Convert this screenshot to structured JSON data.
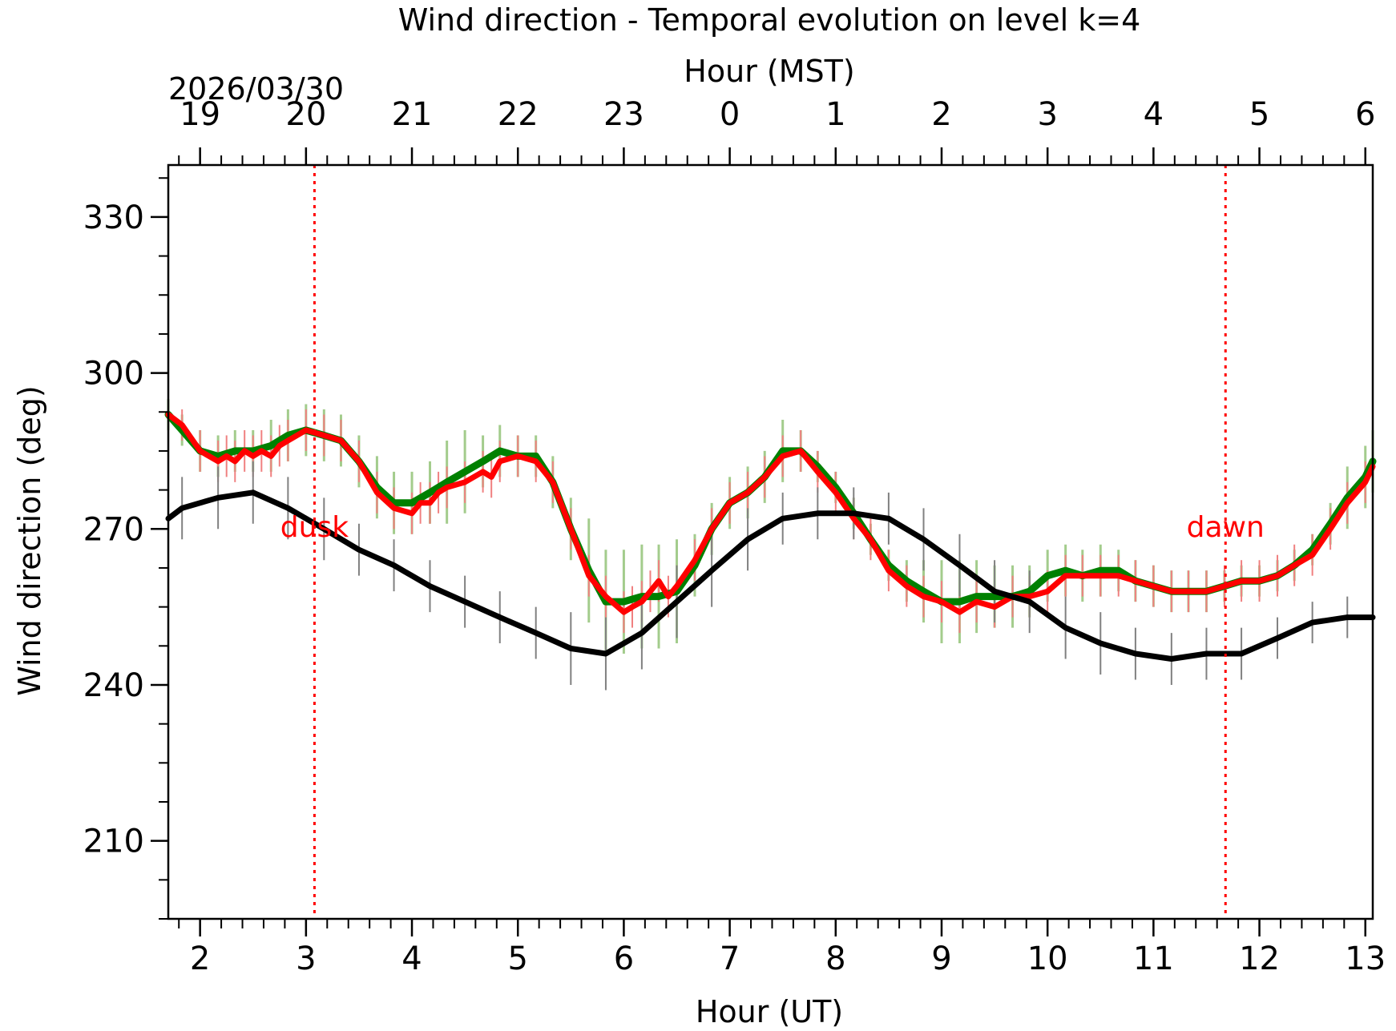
{
  "chart_data": {
    "type": "line",
    "title": "Wind direction - Temporal evolution on level k=4",
    "xlabel": "Hour (UT)",
    "x2label": "Hour (MST)",
    "ylabel": "Wind direction (deg)",
    "date_label": "2026/03/30",
    "xlim": [
      1.7,
      13.07
    ],
    "ylim": [
      195,
      340
    ],
    "x_ticks": [
      2,
      3,
      4,
      5,
      6,
      7,
      8,
      9,
      10,
      11,
      12,
      13
    ],
    "x_tick_labels": [
      "2",
      "3",
      "4",
      "5",
      "6",
      "7",
      "8",
      "9",
      "10",
      "11",
      "12",
      "13"
    ],
    "x2_ticks": [
      2,
      3,
      4,
      5,
      6,
      7,
      8,
      9,
      10,
      11,
      12,
      13
    ],
    "x2_tick_labels": [
      "19",
      "20",
      "21",
      "22",
      "23",
      "0",
      "1",
      "2",
      "3",
      "4",
      "5",
      "6"
    ],
    "y_ticks": [
      210,
      240,
      270,
      300,
      330
    ],
    "y_tick_labels": [
      "210",
      "240",
      "270",
      "300",
      "330"
    ],
    "annotations": [
      {
        "text": "dusk",
        "x": 3.08,
        "color": "#ff0000"
      },
      {
        "text": "dawn",
        "x": 11.68,
        "color": "#ff0000"
      }
    ],
    "grid": false,
    "legend": "none",
    "series": [
      {
        "color": "#008000",
        "error_color": "#a3cc8c",
        "x": [
          1.7,
          1.83,
          2.0,
          2.17,
          2.33,
          2.5,
          2.67,
          2.83,
          3.0,
          3.17,
          3.33,
          3.5,
          3.67,
          3.83,
          4.0,
          4.17,
          4.33,
          4.5,
          4.67,
          4.83,
          5.0,
          5.17,
          5.33,
          5.5,
          5.67,
          5.83,
          6.0,
          6.17,
          6.33,
          6.5,
          6.67,
          6.83,
          7.0,
          7.17,
          7.33,
          7.5,
          7.67,
          7.83,
          8.0,
          8.17,
          8.33,
          8.5,
          8.67,
          8.83,
          9.0,
          9.17,
          9.33,
          9.5,
          9.67,
          9.83,
          10.0,
          10.17,
          10.33,
          10.5,
          10.67,
          10.83,
          11.0,
          11.17,
          11.33,
          11.5,
          11.67,
          11.83,
          12.0,
          12.17,
          12.33,
          12.5,
          12.67,
          12.83,
          13.0,
          13.07
        ],
        "y": [
          292,
          289,
          285,
          284,
          285,
          285,
          286,
          288,
          289,
          288,
          287,
          283,
          278,
          275,
          275,
          277,
          279,
          281,
          283,
          285,
          284,
          284,
          279,
          270,
          262,
          256,
          256,
          257,
          257,
          258,
          263,
          270,
          275,
          277,
          280,
          285,
          285,
          282,
          278,
          273,
          268,
          263,
          260,
          258,
          256,
          256,
          257,
          257,
          257,
          258,
          261,
          262,
          261,
          262,
          262,
          260,
          259,
          258,
          258,
          258,
          259,
          260,
          260,
          261,
          263,
          266,
          271,
          276,
          280,
          283
        ],
        "err": [
          3,
          3,
          4,
          4,
          4,
          4,
          5,
          5,
          5,
          5,
          5,
          5,
          6,
          6,
          6,
          6,
          8,
          8,
          5,
          5,
          4,
          4,
          5,
          6,
          10,
          10,
          10,
          10,
          10,
          10,
          6,
          5,
          5,
          5,
          5,
          6,
          4,
          3,
          3,
          3,
          3,
          3,
          4,
          6,
          8,
          8,
          7,
          6,
          6,
          5,
          5,
          5,
          5,
          5,
          4,
          4,
          4,
          4,
          4,
          4,
          3,
          3,
          3,
          3,
          3,
          3,
          4,
          6,
          6,
          6
        ]
      },
      {
        "color": "#ff0000",
        "error_color": "#f08080",
        "x": [
          1.7,
          1.83,
          2.0,
          2.17,
          2.25,
          2.33,
          2.42,
          2.5,
          2.58,
          2.67,
          2.75,
          2.83,
          3.0,
          3.17,
          3.33,
          3.5,
          3.67,
          3.83,
          4.0,
          4.08,
          4.17,
          4.25,
          4.33,
          4.5,
          4.67,
          4.75,
          4.83,
          5.0,
          5.17,
          5.33,
          5.5,
          5.67,
          5.83,
          6.0,
          6.08,
          6.17,
          6.25,
          6.33,
          6.42,
          6.5,
          6.67,
          6.83,
          7.0,
          7.17,
          7.33,
          7.5,
          7.67,
          7.83,
          8.0,
          8.17,
          8.33,
          8.5,
          8.67,
          8.83,
          9.0,
          9.17,
          9.33,
          9.5,
          9.67,
          9.83,
          10.0,
          10.17,
          10.33,
          10.5,
          10.67,
          10.83,
          11.0,
          11.17,
          11.33,
          11.5,
          11.67,
          11.83,
          12.0,
          12.17,
          12.33,
          12.5,
          12.67,
          12.83,
          13.0,
          13.07
        ],
        "y": [
          292,
          290,
          285,
          283,
          284,
          283,
          285,
          284,
          285,
          284,
          286,
          287,
          289,
          288,
          287,
          283,
          277,
          274,
          273,
          275,
          275,
          277,
          278,
          279,
          281,
          280,
          283,
          284,
          283,
          279,
          270,
          261,
          257,
          254,
          255,
          256,
          258,
          260,
          257,
          259,
          264,
          270,
          275,
          277,
          280,
          284,
          285,
          281,
          277,
          272,
          268,
          262,
          259,
          257,
          256,
          254,
          256,
          255,
          257,
          257,
          258,
          261,
          261,
          261,
          261,
          260,
          259,
          258,
          258,
          258,
          259,
          260,
          260,
          261,
          263,
          265,
          270,
          275,
          279,
          282
        ],
        "err": [
          3,
          3,
          4,
          4,
          4,
          4,
          4,
          4,
          4,
          4,
          4,
          4,
          4,
          4,
          4,
          4,
          4,
          4,
          4,
          4,
          4,
          4,
          4,
          4,
          4,
          4,
          4,
          4,
          4,
          4,
          4,
          4,
          4,
          4,
          4,
          4,
          4,
          4,
          4,
          4,
          4,
          4,
          4,
          4,
          4,
          4,
          4,
          4,
          4,
          4,
          4,
          4,
          4,
          4,
          4,
          4,
          4,
          4,
          4,
          4,
          4,
          4,
          4,
          4,
          4,
          4,
          4,
          4,
          4,
          4,
          4,
          4,
          4,
          4,
          4,
          4,
          4,
          4,
          4,
          4
        ]
      },
      {
        "color": "#000000",
        "error_color": "#808080",
        "x": [
          1.7,
          1.83,
          2.17,
          2.5,
          2.83,
          3.17,
          3.5,
          3.83,
          4.17,
          4.5,
          4.83,
          5.17,
          5.5,
          5.83,
          6.17,
          6.5,
          6.83,
          7.17,
          7.5,
          7.83,
          8.17,
          8.5,
          8.83,
          9.17,
          9.5,
          9.83,
          10.17,
          10.5,
          10.83,
          11.17,
          11.5,
          11.83,
          12.17,
          12.5,
          12.83,
          13.07
        ],
        "y": [
          272,
          274,
          276,
          277,
          274,
          270,
          266,
          263,
          259,
          256,
          253,
          250,
          247,
          246,
          250,
          256,
          262,
          268,
          272,
          273,
          273,
          272,
          268,
          263,
          258,
          256,
          251,
          248,
          246,
          245,
          246,
          246,
          249,
          252,
          253,
          253
        ],
        "err": [
          6,
          6,
          6,
          6,
          6,
          6,
          5,
          5,
          5,
          5,
          5,
          5,
          7,
          7,
          7,
          7,
          7,
          6,
          5,
          5,
          5,
          5,
          6,
          6,
          6,
          6,
          6,
          6,
          5,
          5,
          5,
          5,
          4,
          4,
          4,
          4
        ]
      }
    ]
  }
}
